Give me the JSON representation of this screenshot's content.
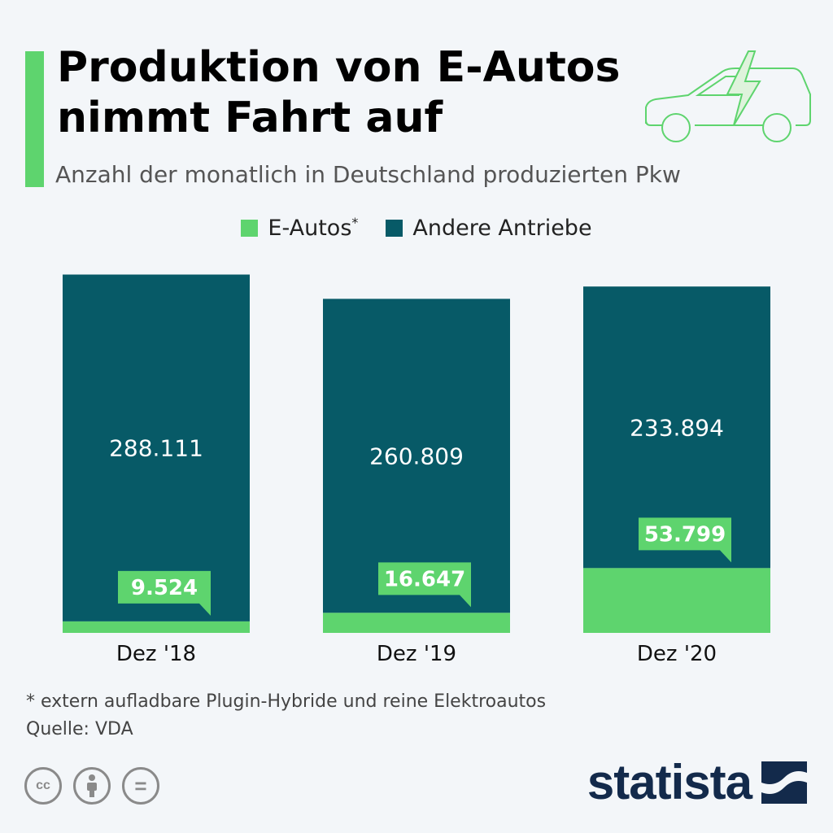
{
  "title": "Produktion von E-Autos nimmt Fahrt auf",
  "subtitle": "Anzahl der monatlich in Deutschland produzierten Pkw",
  "legend": {
    "eauto_label": "E-Autos",
    "eauto_marker": "*",
    "other_label": "Andere Antriebe"
  },
  "colors": {
    "green": "#5ed46e",
    "teal": "#075a67",
    "background": "#f3f6f9",
    "brand": "#132a4b"
  },
  "chart_data": {
    "type": "bar",
    "stacked": true,
    "categories": [
      "Dez '18",
      "Dez '19",
      "Dez '20"
    ],
    "series": [
      {
        "name": "E-Autos",
        "values": [
          9524,
          16647,
          53799
        ],
        "labels": [
          "9.524",
          "16.647",
          "53.799"
        ],
        "color": "#5ed46e"
      },
      {
        "name": "Andere Antriebe",
        "values": [
          288111,
          260809,
          233894
        ],
        "labels": [
          "288.111",
          "260.809",
          "233.894"
        ],
        "color": "#075a67"
      }
    ],
    "title": "Produktion von E-Autos nimmt Fahrt auf",
    "ylim": [
      0,
      300000
    ]
  },
  "footnote": "* extern aufladbare Plugin-Hybride und reine Elektroautos",
  "source": "Quelle: VDA",
  "license": {
    "cc": "cc",
    "equals": "="
  },
  "brand": "statista"
}
